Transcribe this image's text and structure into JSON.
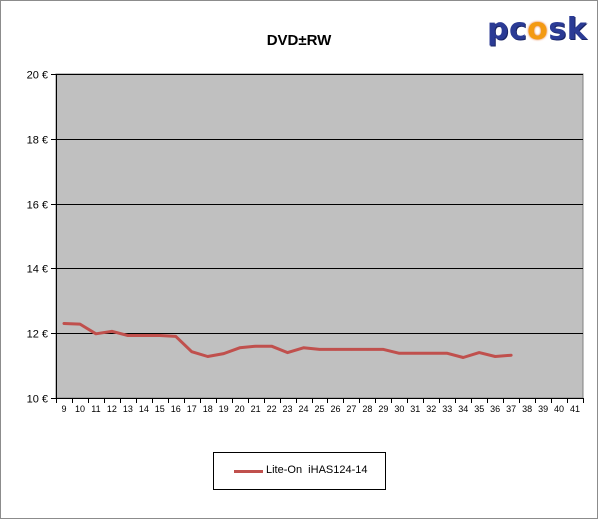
{
  "logo": {
    "pre": "pc",
    "flame_char": "o",
    "post": "sk"
  },
  "chart_data": {
    "type": "line",
    "title": "DVD±RW",
    "xlabel": "",
    "ylabel": "",
    "categories": [
      "9",
      "10",
      "11",
      "12",
      "13",
      "14",
      "15",
      "16",
      "17",
      "18",
      "19",
      "20",
      "21",
      "22",
      "23",
      "24",
      "25",
      "26",
      "27",
      "28",
      "29",
      "30",
      "31",
      "32",
      "33",
      "34",
      "35",
      "36",
      "37",
      "38",
      "39",
      "40",
      "41"
    ],
    "series": [
      {
        "name": "Lite-On  iHAS124-14",
        "color": "#c0504d",
        "values": [
          12.3,
          12.28,
          11.98,
          12.06,
          11.93,
          11.93,
          11.93,
          11.9,
          11.43,
          11.28,
          11.37,
          11.55,
          11.6,
          11.6,
          11.4,
          11.55,
          11.5,
          11.5,
          11.5,
          11.5,
          11.5,
          11.38,
          11.38,
          11.38,
          11.38,
          11.25,
          11.4,
          11.28,
          11.32,
          null,
          null,
          null,
          null
        ]
      }
    ],
    "ylim": [
      10,
      20
    ],
    "yticks": [
      {
        "value": 10,
        "label": "10 €"
      },
      {
        "value": 12,
        "label": "12 €"
      },
      {
        "value": 14,
        "label": "14 €"
      },
      {
        "value": 16,
        "label": "16 €"
      },
      {
        "value": 18,
        "label": "18 €"
      },
      {
        "value": 20,
        "label": "20 €"
      }
    ],
    "grid": true,
    "plot_background": "#c0c0c0",
    "legend_position": "bottom"
  }
}
